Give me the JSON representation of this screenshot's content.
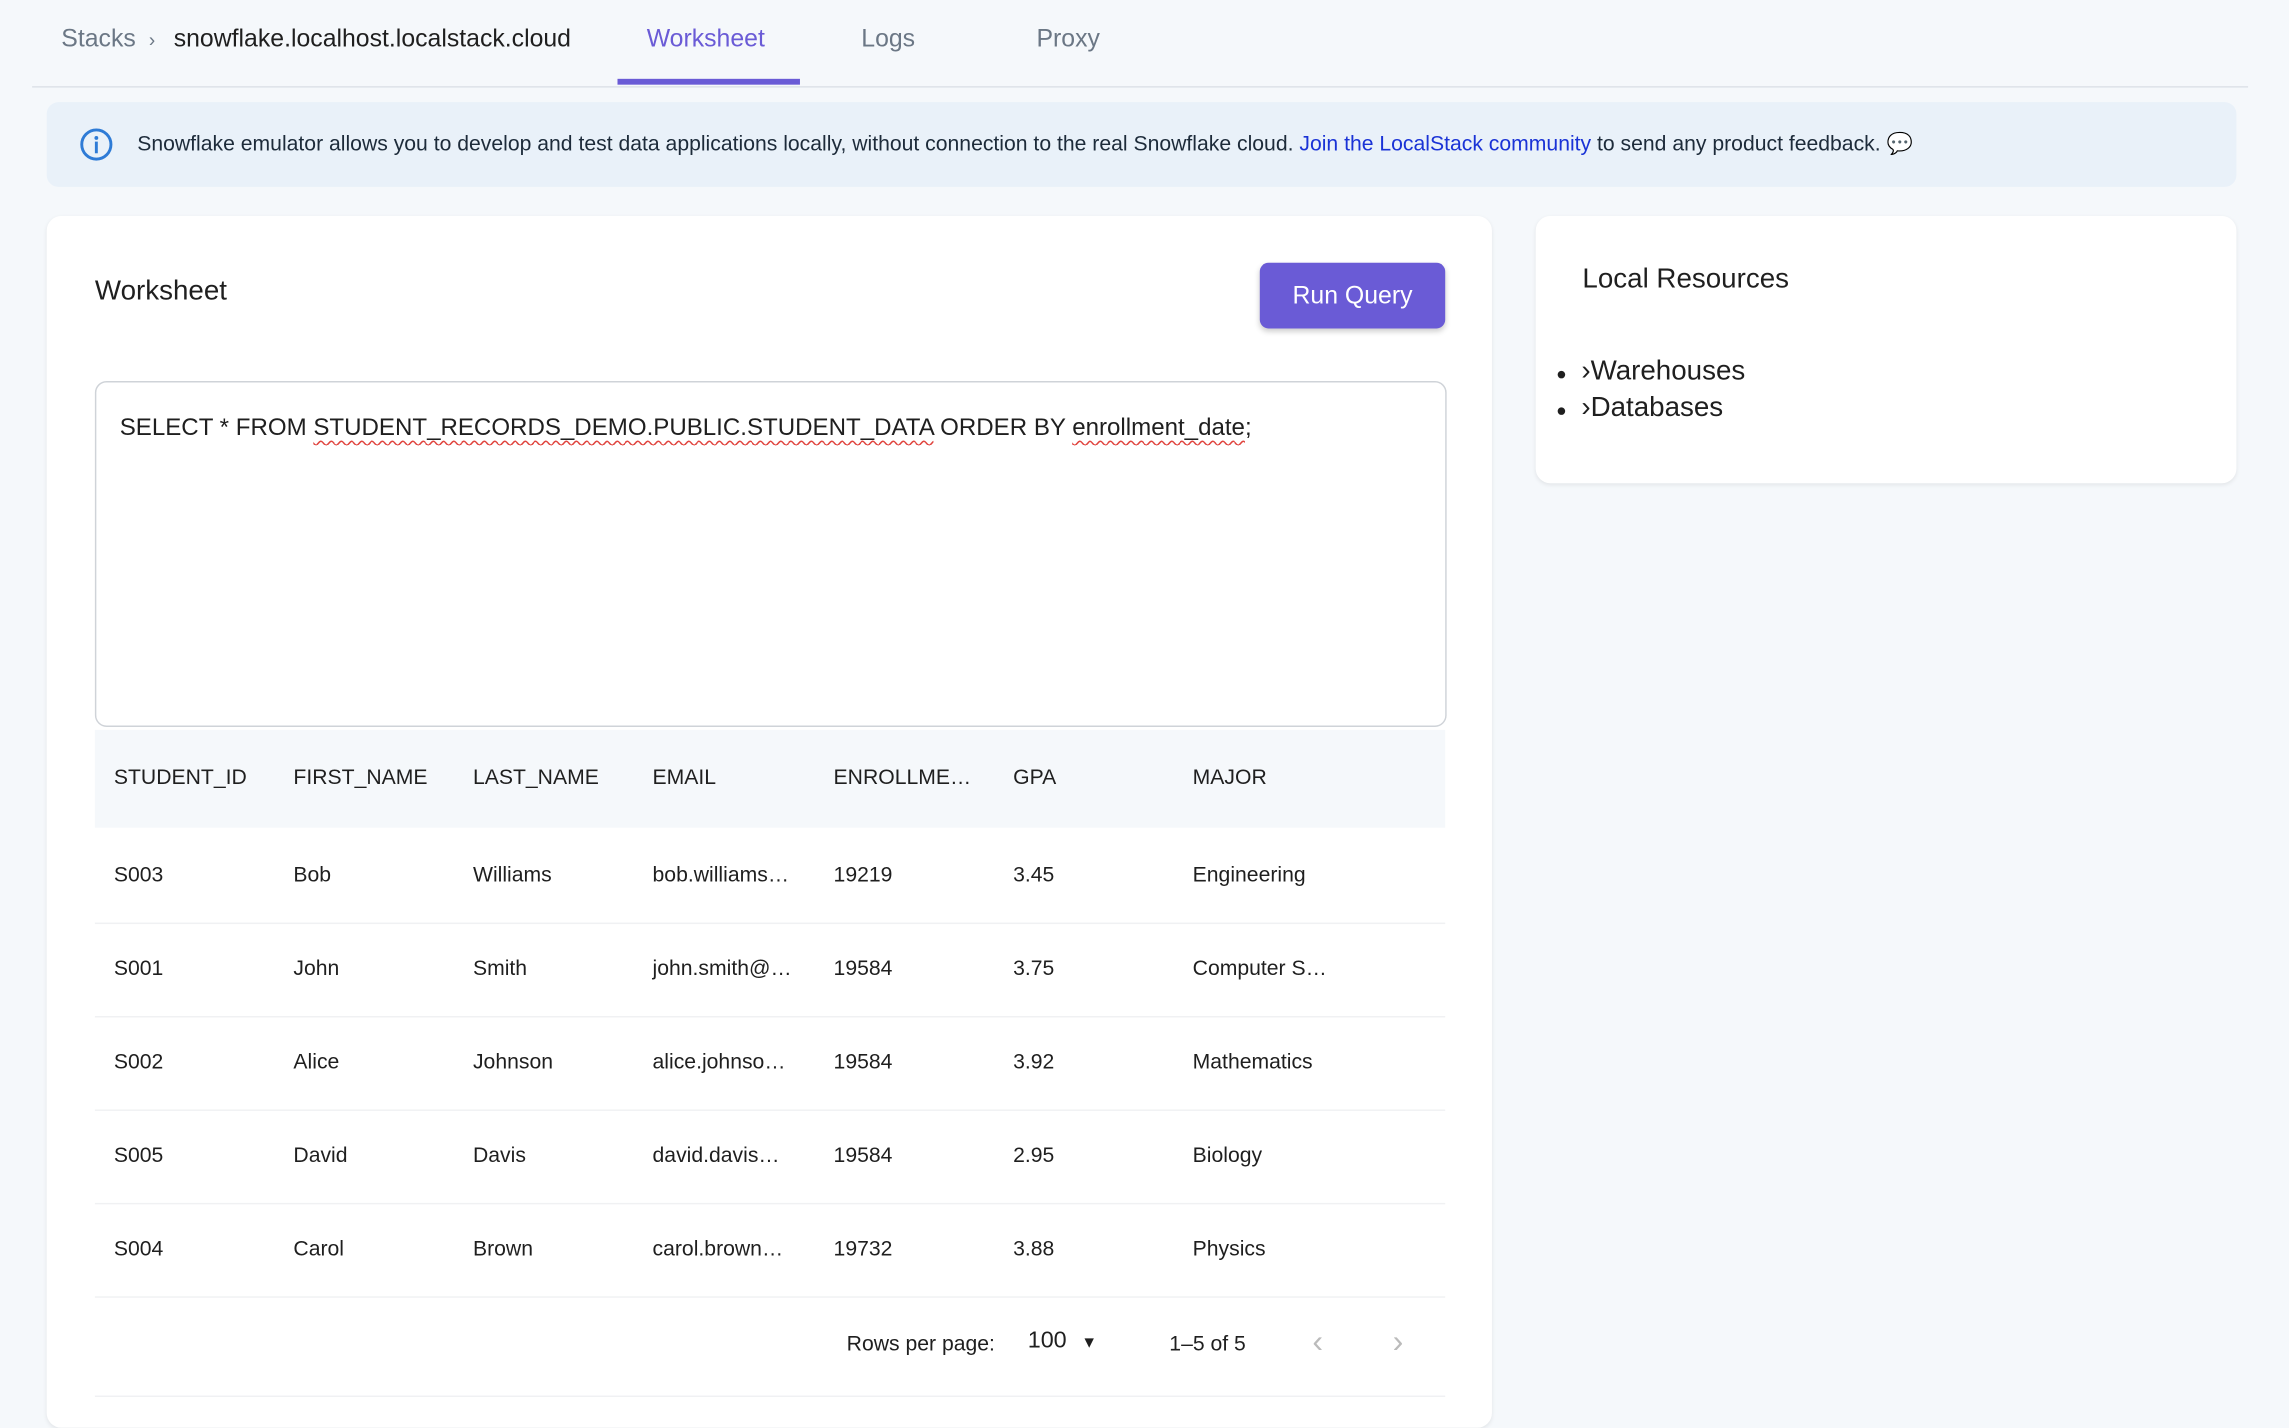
{
  "breadcrumb": {
    "root": "Stacks",
    "separator": "›",
    "current": "snowflake.localhost.localstack.cloud"
  },
  "tabs": [
    {
      "label": "Worksheet",
      "active": true
    },
    {
      "label": "Logs"
    },
    {
      "label": "Proxy"
    }
  ],
  "banner": {
    "text": "Snowflake emulator allows you to develop and test data applications locally, without connection to the real Snowflake cloud.",
    "link": "Join the LocalStack community",
    "suffix": "to send any product feedback.",
    "icon": "info-icon"
  },
  "worksheet": {
    "title": "Worksheet",
    "run_label": "Run Query",
    "query": {
      "p1": "SELECT * FROM ",
      "p2": "STUDENT_RECORDS_DEMO.PUBLIC.STUDENT_DATA",
      "p3": " ORDER BY ",
      "p4": "enrollment_date",
      ";": ";"
    },
    "columns": [
      "STUDENT_ID",
      "FIRST_NAME",
      "LAST_NAME",
      "EMAIL",
      "ENROLLME…",
      "GPA",
      "MAJOR"
    ],
    "rows": [
      [
        "S003",
        "Bob",
        "Williams",
        "bob.williams…",
        "19219",
        "3.45",
        "Engineering"
      ],
      [
        "S001",
        "John",
        "Smith",
        "john.smith@…",
        "19584",
        "3.75",
        "Computer S…"
      ],
      [
        "S002",
        "Alice",
        "Johnson",
        "alice.johnso…",
        "19584",
        "3.92",
        "Mathematics"
      ],
      [
        "S005",
        "David",
        "Davis",
        "david.davis…",
        "19584",
        "2.95",
        "Biology"
      ],
      [
        "S004",
        "Carol",
        "Brown",
        "carol.brown…",
        "19732",
        "3.88",
        "Physics"
      ]
    ],
    "pagination": {
      "rows_label": "Rows per page:",
      "rows_value": "100",
      "range": "1–5 of 5"
    }
  },
  "resources": {
    "title": "Local Resources",
    "items": [
      "Warehouses",
      "Databases"
    ]
  },
  "colors": {
    "accent": "#6a5bd6",
    "link": "#1a33d6",
    "banner_bg": "#e9f1f9"
  }
}
